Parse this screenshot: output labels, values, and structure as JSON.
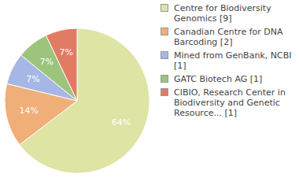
{
  "chart_data": {
    "type": "pie",
    "categories": [
      "Centre for Biodiversity Genomics [9]",
      "Canadian Centre for DNA Barcoding [2]",
      "Mined from GenBank, NCBI [1]",
      "GATC Biotech AG [1]",
      "CIBIO, Research Center in Biodiversity and Genetic Resource... [1]"
    ],
    "values": [
      64,
      14,
      7,
      7,
      7
    ],
    "value_labels": [
      "64%",
      "14%",
      "7%",
      "7%",
      "7%"
    ],
    "data_labels": true,
    "colors": [
      "#dde4a4",
      "#f0ae78",
      "#a6b7e6",
      "#9cc47c",
      "#e27b63"
    ],
    "legend": "right"
  }
}
